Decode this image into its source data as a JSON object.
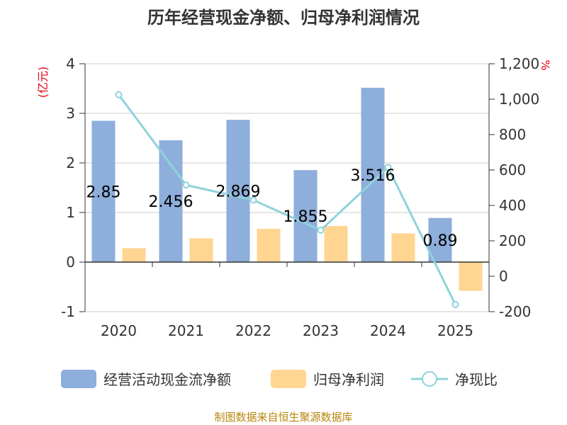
{
  "title": "历年经营现金净额、归母净利润情况",
  "source_note": "制图数据来自恒生聚源数据库",
  "chart_data": {
    "type": "bar",
    "categories": [
      "2020",
      "2021",
      "2022",
      "2023",
      "2024",
      "2025"
    ],
    "series": [
      {
        "name": "经营活动现金流净额",
        "type": "bar",
        "axis": "left",
        "color": "#8eaedb",
        "values": [
          2.85,
          2.456,
          2.869,
          1.855,
          3.516,
          0.89
        ]
      },
      {
        "name": "归母净利润",
        "type": "bar",
        "axis": "left",
        "color": "#ffd591",
        "values": [
          0.28,
          0.48,
          0.67,
          0.73,
          0.58,
          -0.58
        ]
      },
      {
        "name": "净现比",
        "type": "line",
        "axis": "right",
        "color": "#8ed3da",
        "values": [
          1025,
          515,
          430,
          260,
          615,
          -160
        ]
      }
    ],
    "data_labels": [
      "2.85",
      "2.456",
      "2.869",
      "1.855",
      "3.516",
      "0.89"
    ],
    "y_left": {
      "label": "(亿元)",
      "ylim": [
        -1,
        4
      ],
      "ticks": [
        "-1",
        "0",
        "1",
        "2",
        "3",
        "4"
      ]
    },
    "y_right": {
      "label": "%",
      "ylim": [
        -200,
        1200
      ],
      "ticks": [
        "-200",
        "0",
        "200",
        "400",
        "600",
        "800",
        "1,000",
        "1,200"
      ]
    },
    "grid": true,
    "legend_position": "bottom"
  }
}
